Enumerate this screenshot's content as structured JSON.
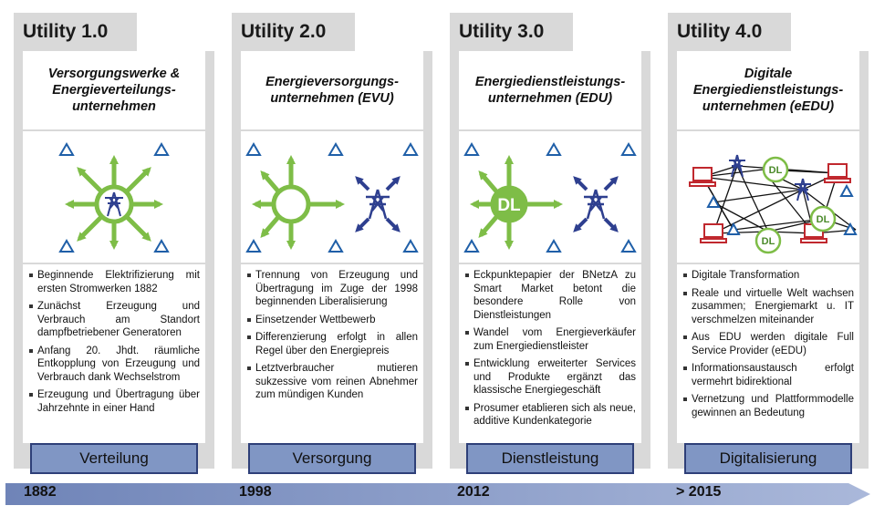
{
  "columns": [
    {
      "header": "Utility 1.0",
      "title": "Versorgungswerke &\nEnergieverteilungs-\nunternehmen",
      "bullets": [
        "Beginnende Elektrifizierung mit ersten Stromwerken 1882",
        "Zunächst Erzeugung und Verbrauch am Standort dampfbetriebener Generatoren",
        "Anfang 20. Jhdt. räumliche Entkopplung von Erzeugung und Verbrauch dank Wechselstrom",
        "Erzeugung und Übertragung über Jahrzehnte in einer Hand"
      ],
      "phase": "Verteilung"
    },
    {
      "header": "Utility 2.0",
      "title": "Energieversorgungs-\nunternehmen (EVU)",
      "bullets": [
        "Trennung von Erzeugung und Übertragung im Zuge der 1998 beginnenden Liberalisierung",
        "Einsetzender Wettbewerb",
        "Differenzierung erfolgt in allen Regel über den Energiepreis",
        "Letztverbraucher mutieren sukzessive vom reinen Abnehmer zum mündigen Kunden"
      ],
      "phase": "Versorgung"
    },
    {
      "header": "Utility 3.0",
      "title": "Energiedienstleistungs-\nunternehmen (EDU)",
      "bullets": [
        "Eckpunktepapier der BNetzA zu Smart Market betont die besondere Rolle von Dienstleistungen",
        "Wandel vom Energieverkäufer zum Energiedienstleister",
        "Entwicklung erweiterter Services und Produkte ergänzt das klassische Energiegeschäft",
        "Prosumer etablieren sich als neue, additive Kundenkategorie"
      ],
      "phase": "Dienstleistung",
      "icon_label": "DL"
    },
    {
      "header": "Utility 4.0",
      "title": "Digitale\nEnergiedienstleistungs-\nunternehmen (eEDU)",
      "bullets": [
        "Digitale Transformation",
        "Reale und virtuelle Welt wachsen zusammen; Energiemarkt u. IT verschmelzen miteinander",
        "Aus EDU werden digitale Full Service Provider (eEDU)",
        "Informationsaustausch erfolgt vermehrt bidirektional",
        "Vernetzung und Plattformmodelle gewinnen an Bedeutung"
      ],
      "phase": "Digitalisierung",
      "icon_labels": [
        "DL",
        "DL",
        "DL"
      ]
    }
  ],
  "timeline": [
    "1882",
    "1998",
    "2012",
    "> 2015"
  ],
  "colors": {
    "green": "#7ebd47",
    "navy": "#2e3f8f",
    "blue_triangle": "#1f5fa8",
    "red": "#c0282e",
    "phase_fill": "#8096c4",
    "timeline": "#7b8fc1"
  }
}
